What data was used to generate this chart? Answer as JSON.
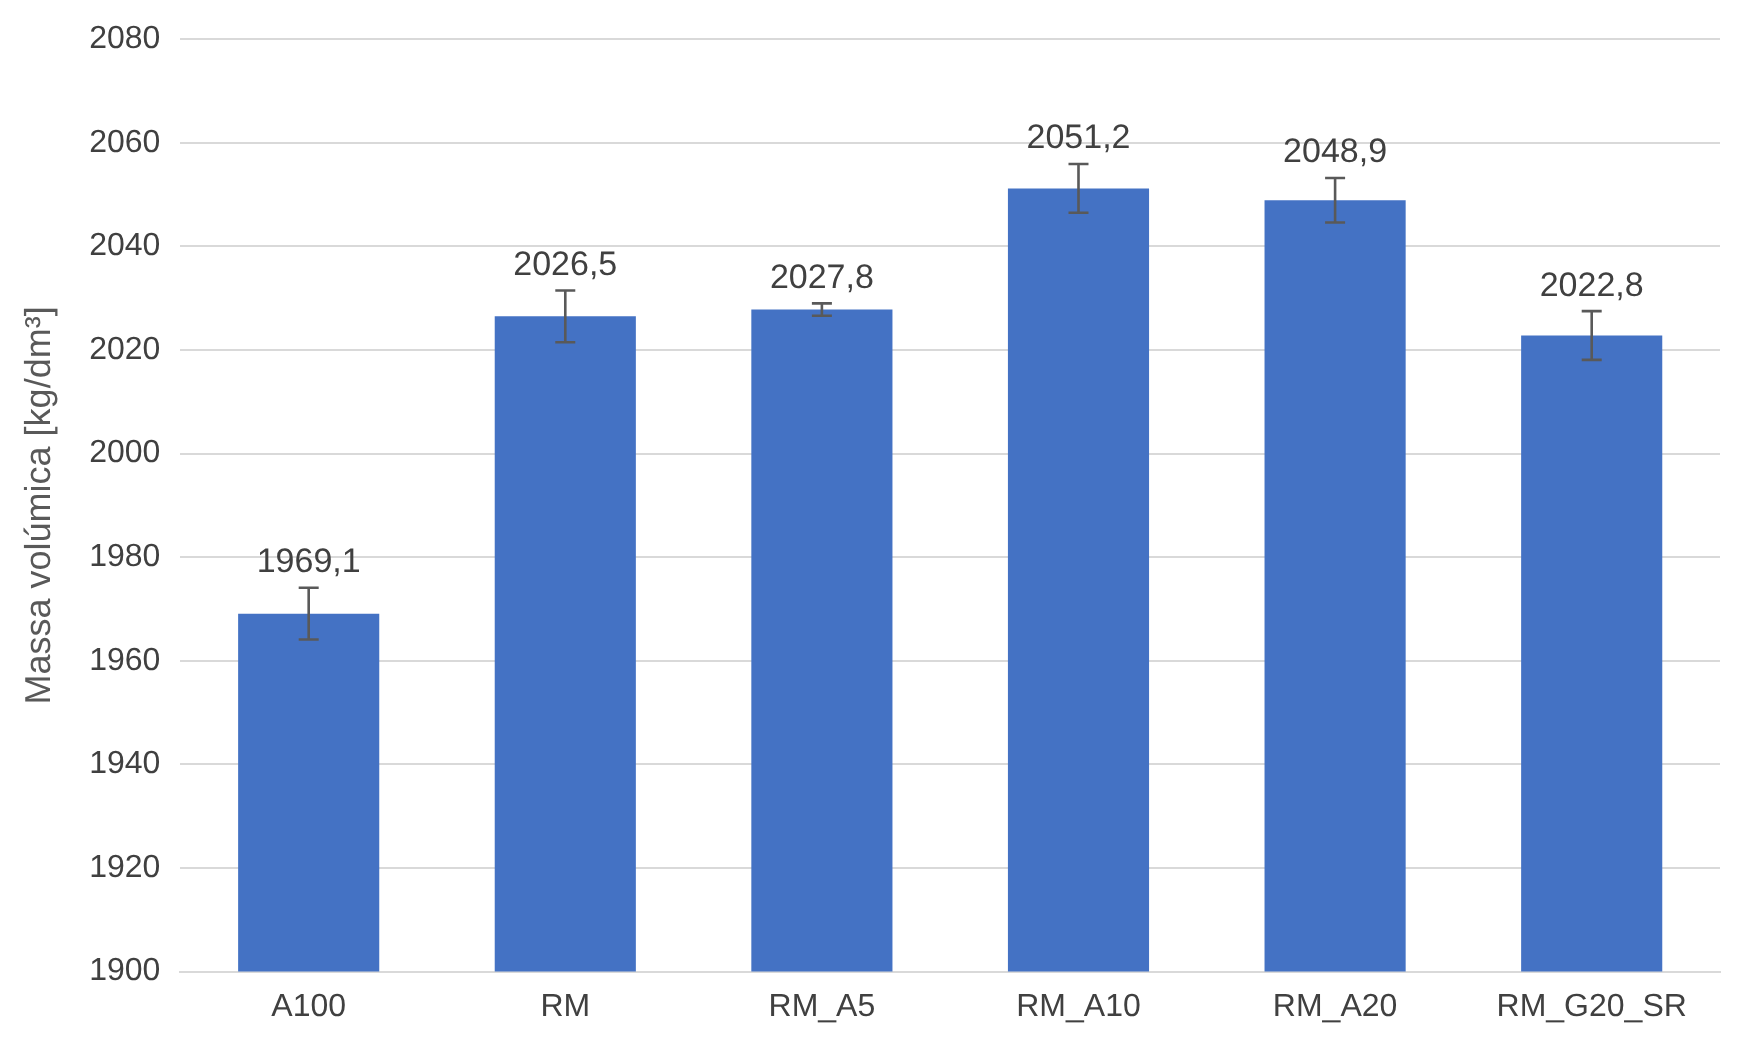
{
  "chart_data": {
    "type": "bar",
    "ylabel": "Massa volúmica [kg/dm³]",
    "categories": [
      "A100",
      "RM",
      "RM_A5",
      "RM_A10",
      "RM_A20",
      "RM_G20_SR"
    ],
    "values": [
      1969.1,
      2026.5,
      2027.8,
      2051.2,
      2048.9,
      2022.8
    ],
    "errors": [
      5,
      5,
      1.2,
      4.7,
      4.3,
      4.7
    ],
    "value_labels": [
      "1969,1",
      "2026,5",
      "2027,8",
      "2051,2",
      "2048,9",
      "2022,8"
    ],
    "color": "#4472c4",
    "ylim": [
      1900,
      2080
    ],
    "yticks": [
      1900,
      1920,
      1940,
      1960,
      1980,
      2000,
      2020,
      2040,
      2060,
      2080
    ],
    "grid": "y",
    "legend": false
  }
}
